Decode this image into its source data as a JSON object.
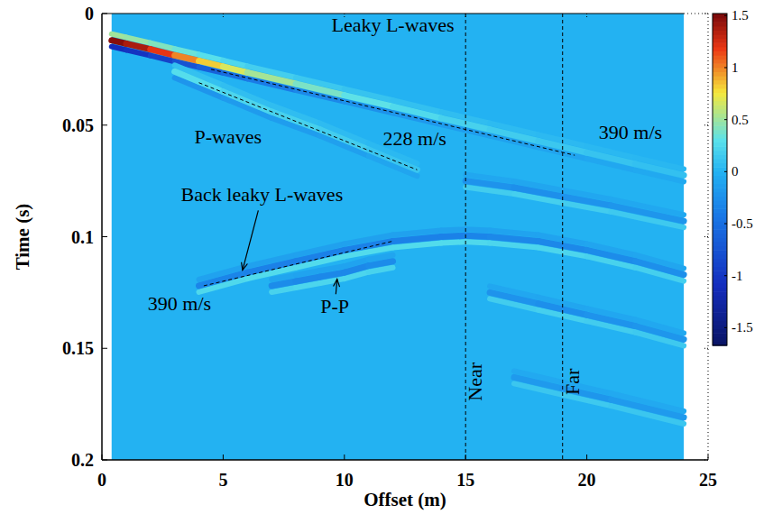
{
  "chart_data": {
    "type": "seismic_section",
    "xlabel": "Offset (m)",
    "ylabel": "Time (s)",
    "xlim": [
      0,
      25
    ],
    "ylim": [
      0,
      0.2
    ],
    "xticks": [
      0,
      5,
      10,
      15,
      20,
      25
    ],
    "yticks": [
      0,
      0.05,
      0.1,
      0.15,
      0.2
    ],
    "colorbar": {
      "range": [
        -1.67,
        1.52
      ],
      "ticks": [
        1.5,
        1,
        0.5,
        0,
        -0.5,
        -1,
        -1.5
      ]
    },
    "traces_x": [
      0.4,
      24
    ],
    "background": 0,
    "series": [
      {
        "x": [
          0.4,
          1,
          2,
          3,
          4,
          5,
          6,
          8,
          10,
          12,
          14,
          16,
          18,
          20,
          22,
          24
        ],
        "values": [
          0.012,
          0.0135,
          0.016,
          0.0187,
          0.0212,
          0.0238,
          0.0264,
          0.0315,
          0.0366,
          0.0417,
          0.0469,
          0.052,
          0.0571,
          0.0623,
          0.0674,
          0.0725
        ],
        "amplitude": [
          1.5,
          1.45,
          1.3,
          1.1,
          0.9,
          0.75,
          0.6,
          0.45,
          0.35,
          0.28,
          0.22,
          0.18,
          0.15,
          0.12,
          0.1,
          0.08
        ]
      },
      {
        "x": [
          3,
          5,
          7,
          9,
          11,
          13
        ],
        "values": [
          0.026,
          0.035,
          0.044,
          0.052,
          0.061,
          0.07
        ],
        "amplitude": [
          0.3,
          0.25,
          0.2,
          0.2,
          0.15,
          0.1
        ]
      },
      {
        "x": [
          4,
          6,
          8,
          10,
          12,
          14,
          15,
          16,
          18,
          20,
          22,
          24
        ],
        "values": [
          0.122,
          0.116,
          0.111,
          0.106,
          0.102,
          0.1,
          0.0995,
          0.1,
          0.102,
          0.106,
          0.111,
          0.117
        ],
        "amplitude": [
          -0.3,
          -0.35,
          -0.35,
          -0.35,
          -0.35,
          -0.35,
          -0.35,
          -0.3,
          -0.3,
          -0.3,
          -0.25,
          -0.25
        ]
      },
      {
        "x": [
          7,
          8,
          9,
          10,
          11,
          12
        ],
        "values": [
          0.122,
          0.12,
          0.118,
          0.116,
          0.113,
          0.111
        ],
        "amplitude": [
          -0.25,
          -0.3,
          -0.3,
          -0.3,
          -0.3,
          -0.25
        ]
      },
      {
        "x": [
          15,
          17,
          19,
          21,
          24
        ],
        "values": [
          0.075,
          0.078,
          0.082,
          0.086,
          0.093
        ],
        "amplitude": [
          -0.2,
          -0.25,
          -0.25,
          -0.2,
          -0.2
        ]
      },
      {
        "x": [
          16,
          18,
          20,
          22,
          24
        ],
        "values": [
          0.125,
          0.13,
          0.135,
          0.14,
          0.146
        ],
        "amplitude": [
          -0.2,
          -0.25,
          -0.25,
          -0.2,
          -0.2
        ]
      },
      {
        "x": [
          17,
          19,
          21,
          24
        ],
        "values": [
          0.163,
          0.168,
          0.173,
          0.181
        ],
        "amplitude": [
          -0.15,
          -0.2,
          -0.2,
          -0.15
        ]
      }
    ],
    "velocity_lines": [
      {
        "x": [
          4.5,
          19.5
        ],
        "values": [
          0.025,
          0.0635
        ]
      },
      {
        "x": [
          4,
          13
        ],
        "values": [
          0.031,
          0.07
        ]
      },
      {
        "x": [
          4.2,
          12
        ],
        "values": [
          0.122,
          0.102
        ]
      }
    ],
    "guides": [
      {
        "x": 15,
        "label": "Near",
        "y": 0.165
      },
      {
        "x": 19,
        "label": "Far",
        "y": 0.165
      }
    ],
    "annotations": [
      {
        "text": "Leaky L-waves",
        "x": 12,
        "y": 0.006
      },
      {
        "text": "P-waves",
        "x": 5.2,
        "y": 0.056
      },
      {
        "text": "228 m/s",
        "x": 12.9,
        "y": 0.057
      },
      {
        "text": "390 m/s",
        "x": 21.8,
        "y": 0.054
      },
      {
        "text": "Back leaky L-waves",
        "x": 6.6,
        "y": 0.082,
        "arrow_to": [
          5.8,
          0.115
        ]
      },
      {
        "text": "390 m/s",
        "x": 3.2,
        "y": 0.131
      },
      {
        "text": "P-P",
        "x": 9.6,
        "y": 0.132,
        "arrow_to": [
          9.7,
          0.119
        ]
      }
    ]
  }
}
